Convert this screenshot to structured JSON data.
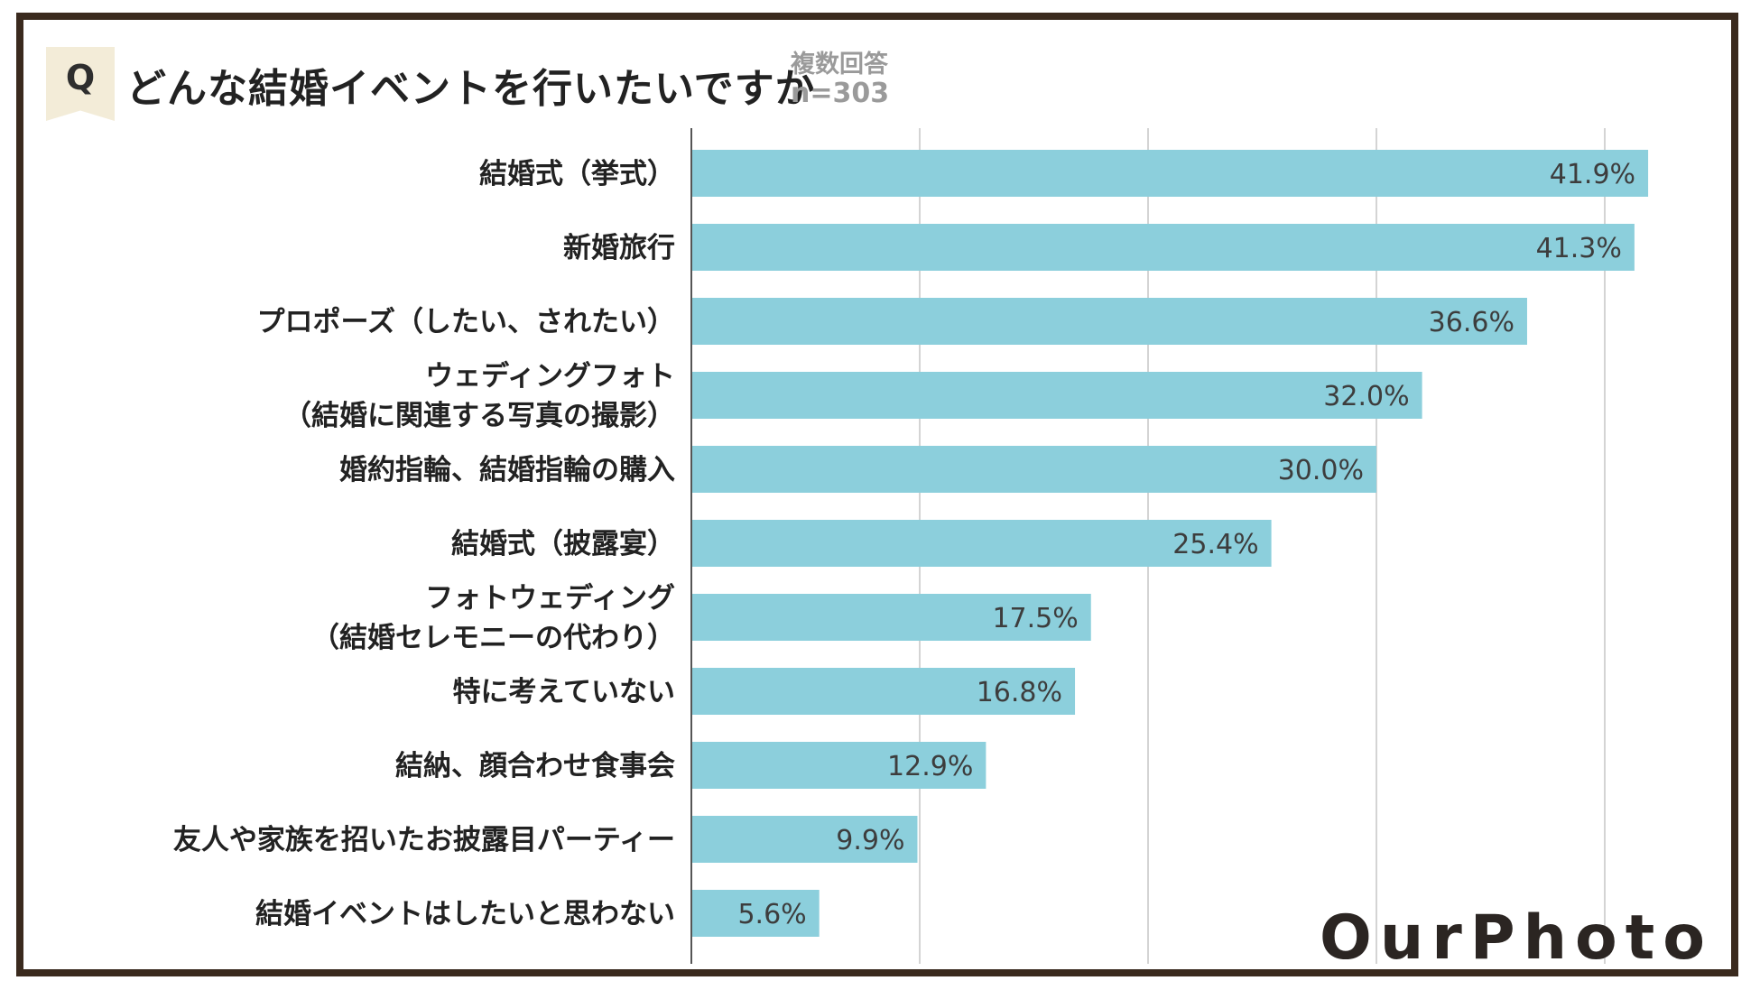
{
  "header": {
    "badge": "Q",
    "title": "どんな結婚イベントを行いたいですか",
    "note_line1": "複数回答",
    "note_line2": "n=303"
  },
  "chart_data": {
    "type": "bar",
    "orientation": "horizontal",
    "categories": [
      "結婚式（挙式）",
      "新婚旅行",
      "プロポーズ（したい、されたい）",
      "ウェディングフォト\n（結婚に関連する写真の撮影）",
      "婚約指輪、結婚指輪の購入",
      "結婚式（披露宴）",
      "フォトウェディング\n（結婚セレモニーの代わり）",
      "特に考えていない",
      "結納、顔合わせ食事会",
      "友人や家族を招いたお披露目パーティー",
      "結婚イベントはしたいと思わない"
    ],
    "values": [
      41.9,
      41.3,
      36.6,
      32.0,
      30.0,
      25.4,
      17.5,
      16.8,
      12.9,
      9.9,
      5.6
    ],
    "value_labels": [
      "41.9%",
      "41.3%",
      "36.6%",
      "32.0%",
      "30.0%",
      "25.4%",
      "17.5%",
      "16.8%",
      "12.9%",
      "9.9%",
      "5.6%"
    ],
    "xlim": [
      0,
      45
    ],
    "gridlines_at": [
      10,
      20,
      30,
      40
    ],
    "grid": true,
    "bar_color": "#8ccfdc"
  },
  "logo": {
    "text": "OurPhoto"
  },
  "colors": {
    "frame": "#3a2a1e",
    "badge_bg": "#f3ecd8",
    "label_text": "#222222",
    "value_text": "#3d3d3d",
    "note_text": "#9a9a9a",
    "grid": "#d4d4d4"
  }
}
